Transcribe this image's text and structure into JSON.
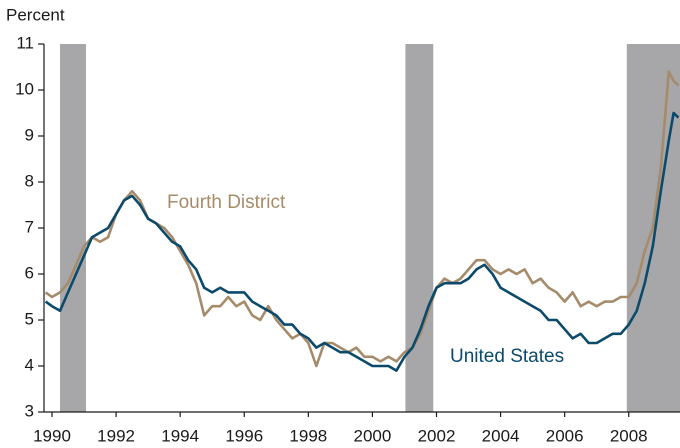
{
  "chart_data": {
    "type": "line",
    "y_label": "Percent",
    "xlim": [
      1989.75,
      2009.6
    ],
    "ylim": [
      3,
      11
    ],
    "xticks": [
      1990,
      1992,
      1994,
      1996,
      1998,
      2000,
      2002,
      2004,
      2006,
      2008
    ],
    "yticks": [
      3,
      4,
      5,
      6,
      7,
      8,
      9,
      10,
      11
    ],
    "recessions": [
      [
        1990.25,
        1991.06
      ],
      [
        2001.03,
        2001.9
      ],
      [
        2007.94,
        2009.6
      ]
    ],
    "recession_color": "#a7a7a9",
    "x": [
      1989.8,
      1990.0,
      1990.25,
      1990.5,
      1990.75,
      1991.0,
      1991.25,
      1991.5,
      1991.75,
      1992.0,
      1992.25,
      1992.5,
      1992.75,
      1993.0,
      1993.25,
      1993.5,
      1993.75,
      1994.0,
      1994.25,
      1994.5,
      1994.75,
      1995.0,
      1995.25,
      1995.5,
      1995.75,
      1996.0,
      1996.25,
      1996.5,
      1996.75,
      1997.0,
      1997.25,
      1997.5,
      1997.75,
      1998.0,
      1998.25,
      1998.5,
      1998.75,
      1999.0,
      1999.25,
      1999.5,
      1999.75,
      2000.0,
      2000.25,
      2000.5,
      2000.75,
      2001.0,
      2001.25,
      2001.5,
      2001.75,
      2002.0,
      2002.25,
      2002.5,
      2002.75,
      2003.0,
      2003.25,
      2003.5,
      2003.75,
      2004.0,
      2004.25,
      2004.5,
      2004.75,
      2005.0,
      2005.25,
      2005.5,
      2005.75,
      2006.0,
      2006.25,
      2006.5,
      2006.75,
      2007.0,
      2007.25,
      2007.5,
      2007.75,
      2008.0,
      2008.25,
      2008.5,
      2008.75,
      2009.0,
      2009.25,
      2009.4,
      2009.55
    ],
    "series": [
      {
        "name": "Fourth District",
        "color": "#a68b6b",
        "values": [
          5.6,
          5.5,
          5.6,
          5.8,
          6.2,
          6.6,
          6.8,
          6.7,
          6.8,
          7.3,
          7.6,
          7.8,
          7.6,
          7.2,
          7.1,
          7.0,
          6.8,
          6.5,
          6.2,
          5.8,
          5.1,
          5.3,
          5.3,
          5.5,
          5.3,
          5.4,
          5.1,
          5.0,
          5.3,
          5.0,
          4.8,
          4.6,
          4.7,
          4.5,
          4.0,
          4.5,
          4.5,
          4.4,
          4.3,
          4.4,
          4.2,
          4.2,
          4.1,
          4.2,
          4.1,
          4.3,
          4.4,
          4.7,
          5.2,
          5.7,
          5.9,
          5.8,
          5.9,
          6.1,
          6.3,
          6.3,
          6.1,
          6.0,
          6.1,
          6.0,
          6.1,
          5.8,
          5.9,
          5.7,
          5.6,
          5.4,
          5.6,
          5.3,
          5.4,
          5.3,
          5.4,
          5.4,
          5.5,
          5.5,
          5.8,
          6.5,
          7.0,
          8.3,
          10.4,
          10.2,
          10.1
        ]
      },
      {
        "name": "United States",
        "color": "#0c4a6c",
        "values": [
          5.4,
          5.3,
          5.2,
          5.6,
          6.0,
          6.4,
          6.8,
          6.9,
          7.0,
          7.3,
          7.6,
          7.7,
          7.5,
          7.2,
          7.1,
          6.9,
          6.7,
          6.6,
          6.3,
          6.1,
          5.7,
          5.6,
          5.7,
          5.6,
          5.6,
          5.6,
          5.4,
          5.3,
          5.2,
          5.1,
          4.9,
          4.9,
          4.7,
          4.6,
          4.4,
          4.5,
          4.4,
          4.3,
          4.3,
          4.2,
          4.1,
          4.0,
          4.0,
          4.0,
          3.9,
          4.2,
          4.4,
          4.8,
          5.3,
          5.7,
          5.8,
          5.8,
          5.8,
          5.9,
          6.1,
          6.2,
          6.0,
          5.7,
          5.6,
          5.5,
          5.4,
          5.3,
          5.2,
          5.0,
          5.0,
          4.8,
          4.6,
          4.7,
          4.5,
          4.5,
          4.6,
          4.7,
          4.7,
          4.9,
          5.2,
          5.8,
          6.6,
          7.8,
          8.9,
          9.5,
          9.4
        ]
      }
    ]
  }
}
